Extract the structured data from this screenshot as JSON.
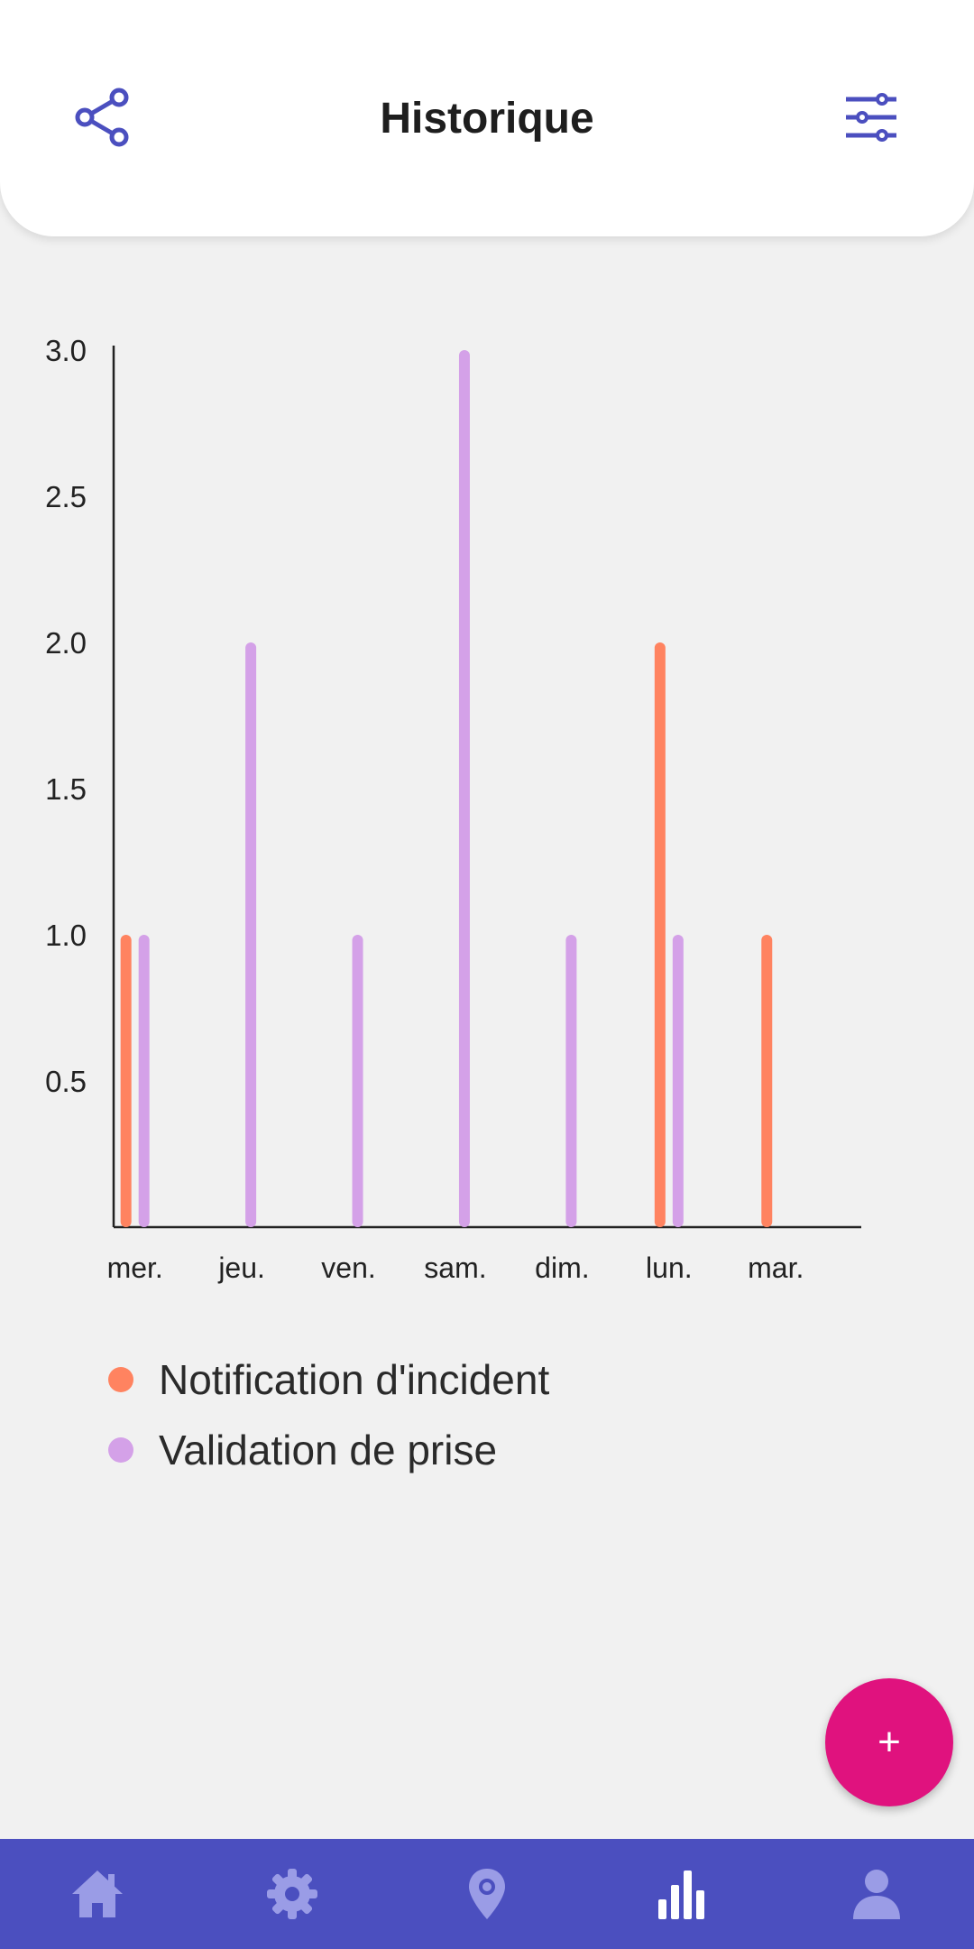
{
  "header": {
    "title": "Historique",
    "share_icon": "share-icon",
    "filter_icon": "sliders-icon"
  },
  "colors": {
    "accent": "#4b4fbf",
    "incident": "#ff8360",
    "validation": "#d4a1e8",
    "fab": "#e0127e"
  },
  "chart_data": {
    "type": "bar",
    "categories": [
      "mer.",
      "jeu.",
      "ven.",
      "sam.",
      "dim.",
      "lun.",
      "mar."
    ],
    "series": [
      {
        "name": "Notification d'incident",
        "values": [
          1,
          0,
          0,
          0,
          0,
          2,
          1
        ]
      },
      {
        "name": "Validation de prise",
        "values": [
          1,
          2,
          1,
          3,
          1,
          1,
          0
        ]
      }
    ],
    "yticks": [
      "0.5",
      "1.0",
      "1.5",
      "2.0",
      "2.5",
      "3.0"
    ],
    "ylim": [
      0,
      3
    ],
    "grid": false,
    "legend_position": "bottom"
  },
  "legend": {
    "items": [
      {
        "label": "Notification d'incident"
      },
      {
        "label": "Validation de prise"
      }
    ]
  },
  "fab": {
    "label": "+"
  },
  "nav": {
    "items": [
      {
        "icon": "home-icon",
        "active": false
      },
      {
        "icon": "gear-icon",
        "active": false
      },
      {
        "icon": "location-pin-icon",
        "active": false
      },
      {
        "icon": "bar-chart-icon",
        "active": true
      },
      {
        "icon": "user-icon",
        "active": false
      }
    ]
  }
}
